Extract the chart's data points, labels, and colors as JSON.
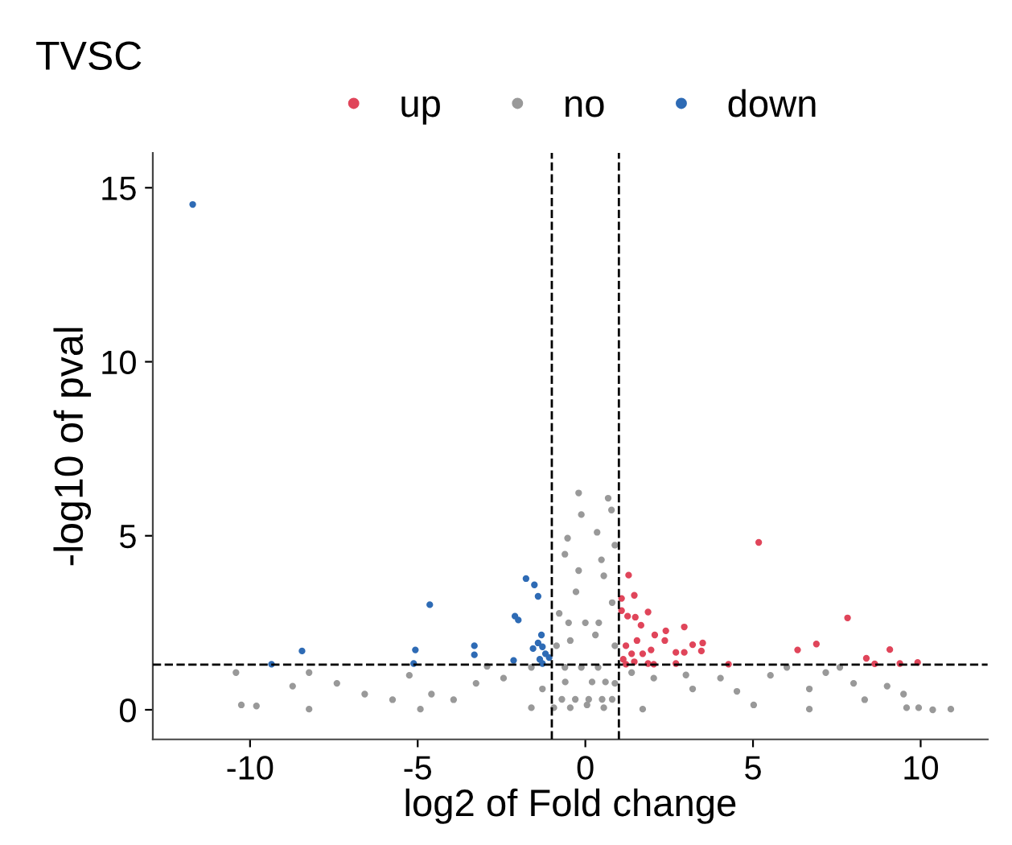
{
  "chart_data": {
    "type": "scatter",
    "title": "TVSC",
    "xlabel": "log2 of Fold change",
    "ylabel": "-log10 of pval",
    "xlim": [
      -12.9,
      12.0
    ],
    "ylim": [
      -0.85,
      16.0
    ],
    "xticks": [
      -10,
      -5,
      0,
      5,
      10
    ],
    "yticks": [
      0,
      5,
      10,
      15
    ],
    "grid": false,
    "legend": "top",
    "marker": "circle",
    "ref_lines": [
      {
        "axis": "x",
        "value": -1,
        "line_style": "dashed",
        "color": "#000000"
      },
      {
        "axis": "x",
        "value": 1,
        "line_style": "dashed",
        "color": "#000000"
      },
      {
        "axis": "y",
        "value": 1.3,
        "line_style": "dashed",
        "color": "#000000"
      }
    ],
    "series": [
      {
        "name": "up",
        "color": "#e0455a",
        "x": [
          5.17,
          1.29,
          1.46,
          1.08,
          1.08,
          1.26,
          1.49,
          1.66,
          1.87,
          2.95,
          2.4,
          2.07,
          3.5,
          3.2,
          2.95,
          2.7,
          3.46,
          2.37,
          1.54,
          1.21,
          1.38,
          1.71,
          1.96,
          1.13,
          1.46,
          1.87,
          2.04,
          1.21,
          2.7,
          4.27,
          7.82,
          6.89,
          6.33,
          9.08,
          8.38,
          8.63,
          9.38,
          9.91
        ],
        "values": [
          4.81,
          3.87,
          3.29,
          3.2,
          2.85,
          2.69,
          2.66,
          2.43,
          2.81,
          2.38,
          2.27,
          2.15,
          1.92,
          1.87,
          1.65,
          1.65,
          1.69,
          1.99,
          1.99,
          1.84,
          1.61,
          1.61,
          1.72,
          1.45,
          1.38,
          1.33,
          1.31,
          1.31,
          1.33,
          1.31,
          2.64,
          1.89,
          1.72,
          1.73,
          1.48,
          1.32,
          1.33,
          1.36
        ]
      },
      {
        "name": "no",
        "color": "#999999",
        "x": [
          -0.2,
          0.68,
          -0.12,
          0.78,
          0.35,
          -0.53,
          0.88,
          -0.61,
          0.48,
          -0.2,
          -0.28,
          0.55,
          -0.78,
          0.8,
          -0.45,
          0.3,
          -0.86,
          0.88,
          -10.26,
          -10.42,
          -9.81,
          -8.73,
          -8.24,
          -7.41,
          -6.58,
          -5.75,
          -5.25,
          -4.59,
          -3.93,
          -3.26,
          -2.93,
          -2.44,
          -1.61,
          -1.28,
          -0.94,
          -0.61,
          -0.12,
          0.38,
          0.05,
          -0.45,
          0.55,
          0.88,
          1.38,
          2.04,
          3.0,
          3.2,
          4.03,
          4.52,
          5.02,
          5.52,
          6.01,
          6.68,
          7.17,
          7.59,
          8.0,
          8.33,
          9.0,
          9.49,
          9.58,
          9.94,
          10.36,
          10.9,
          -8.24,
          -4.92,
          -1.61,
          1.71,
          6.68,
          -0.7,
          -0.3,
          0.1,
          0.5,
          0.8,
          -0.6,
          0.2,
          0.6,
          -0.5,
          0.0,
          0.4
        ],
        "values": [
          6.23,
          6.08,
          5.61,
          5.74,
          5.1,
          4.93,
          4.73,
          4.47,
          4.31,
          4.0,
          3.39,
          3.85,
          2.77,
          3.08,
          1.99,
          2.15,
          1.84,
          1.84,
          0.14,
          1.07,
          0.11,
          0.68,
          1.07,
          0.76,
          0.45,
          0.29,
          0.99,
          0.45,
          0.29,
          0.76,
          1.25,
          0.91,
          1.22,
          0.6,
          0.06,
          1.22,
          1.22,
          1.22,
          0.14,
          0.06,
          0.06,
          0.76,
          1.07,
          0.91,
          1.0,
          0.6,
          0.91,
          0.53,
          0.14,
          0.99,
          1.22,
          0.6,
          1.07,
          1.22,
          0.76,
          0.29,
          0.68,
          0.45,
          0.06,
          0.06,
          0.0,
          0.02,
          0.02,
          0.02,
          0.06,
          0.02,
          0.02,
          0.3,
          0.3,
          0.3,
          0.3,
          0.3,
          0.8,
          0.8,
          0.8,
          2.5,
          2.5,
          2.5
        ]
      },
      {
        "name": "down",
        "color": "#2e6bb5",
        "x": [
          -11.71,
          -9.36,
          -8.45,
          -4.64,
          -5.07,
          -5.12,
          -3.31,
          -3.31,
          -2.1,
          -2.0,
          -1.77,
          -1.52,
          -1.41,
          -1.31,
          -1.41,
          -1.56,
          -1.28,
          -2.14,
          -1.36,
          -1.19,
          -1.28,
          -1.08
        ],
        "values": [
          14.52,
          1.31,
          1.69,
          3.02,
          1.72,
          1.33,
          1.84,
          1.58,
          2.69,
          2.58,
          3.77,
          3.59,
          3.26,
          2.15,
          1.92,
          1.76,
          1.81,
          1.42,
          1.45,
          1.61,
          1.33,
          1.5
        ]
      }
    ]
  }
}
